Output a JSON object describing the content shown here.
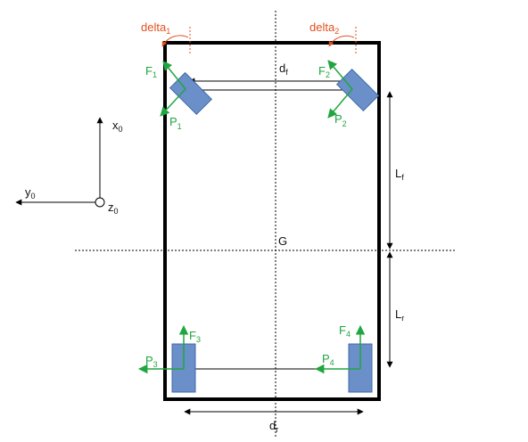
{
  "colors": {
    "frame": "#000000",
    "wheel_fill": "#6b8fc9",
    "wheel_stroke": "#3f6aa8",
    "force": "#20a640",
    "steer_angle": "#e2501e",
    "label": "#111111"
  },
  "labels": {
    "delta1": {
      "base": "delta",
      "sub": "1"
    },
    "delta2": {
      "base": "delta",
      "sub": "2"
    },
    "F1": {
      "base": "F",
      "sub": "1"
    },
    "F2": {
      "base": "F",
      "sub": "2"
    },
    "F3": {
      "base": "F",
      "sub": "3"
    },
    "F4": {
      "base": "F",
      "sub": "4"
    },
    "P1": {
      "base": "P",
      "sub": "1"
    },
    "P2": {
      "base": "P",
      "sub": "2"
    },
    "P3": {
      "base": "P",
      "sub": "3"
    },
    "P4": {
      "base": "P",
      "sub": "4"
    },
    "df": {
      "base": "d",
      "sub": "f"
    },
    "dr": {
      "base": "d",
      "sub": "r"
    },
    "Lf": {
      "base": "L",
      "sub": "f"
    },
    "Lr": {
      "base": "L",
      "sub": "r"
    },
    "x0": {
      "base": "x",
      "sub": "0"
    },
    "y0": {
      "base": "y",
      "sub": "0"
    },
    "z0": {
      "base": "z",
      "sub": "0"
    },
    "G": {
      "base": "G",
      "sub": ""
    }
  }
}
